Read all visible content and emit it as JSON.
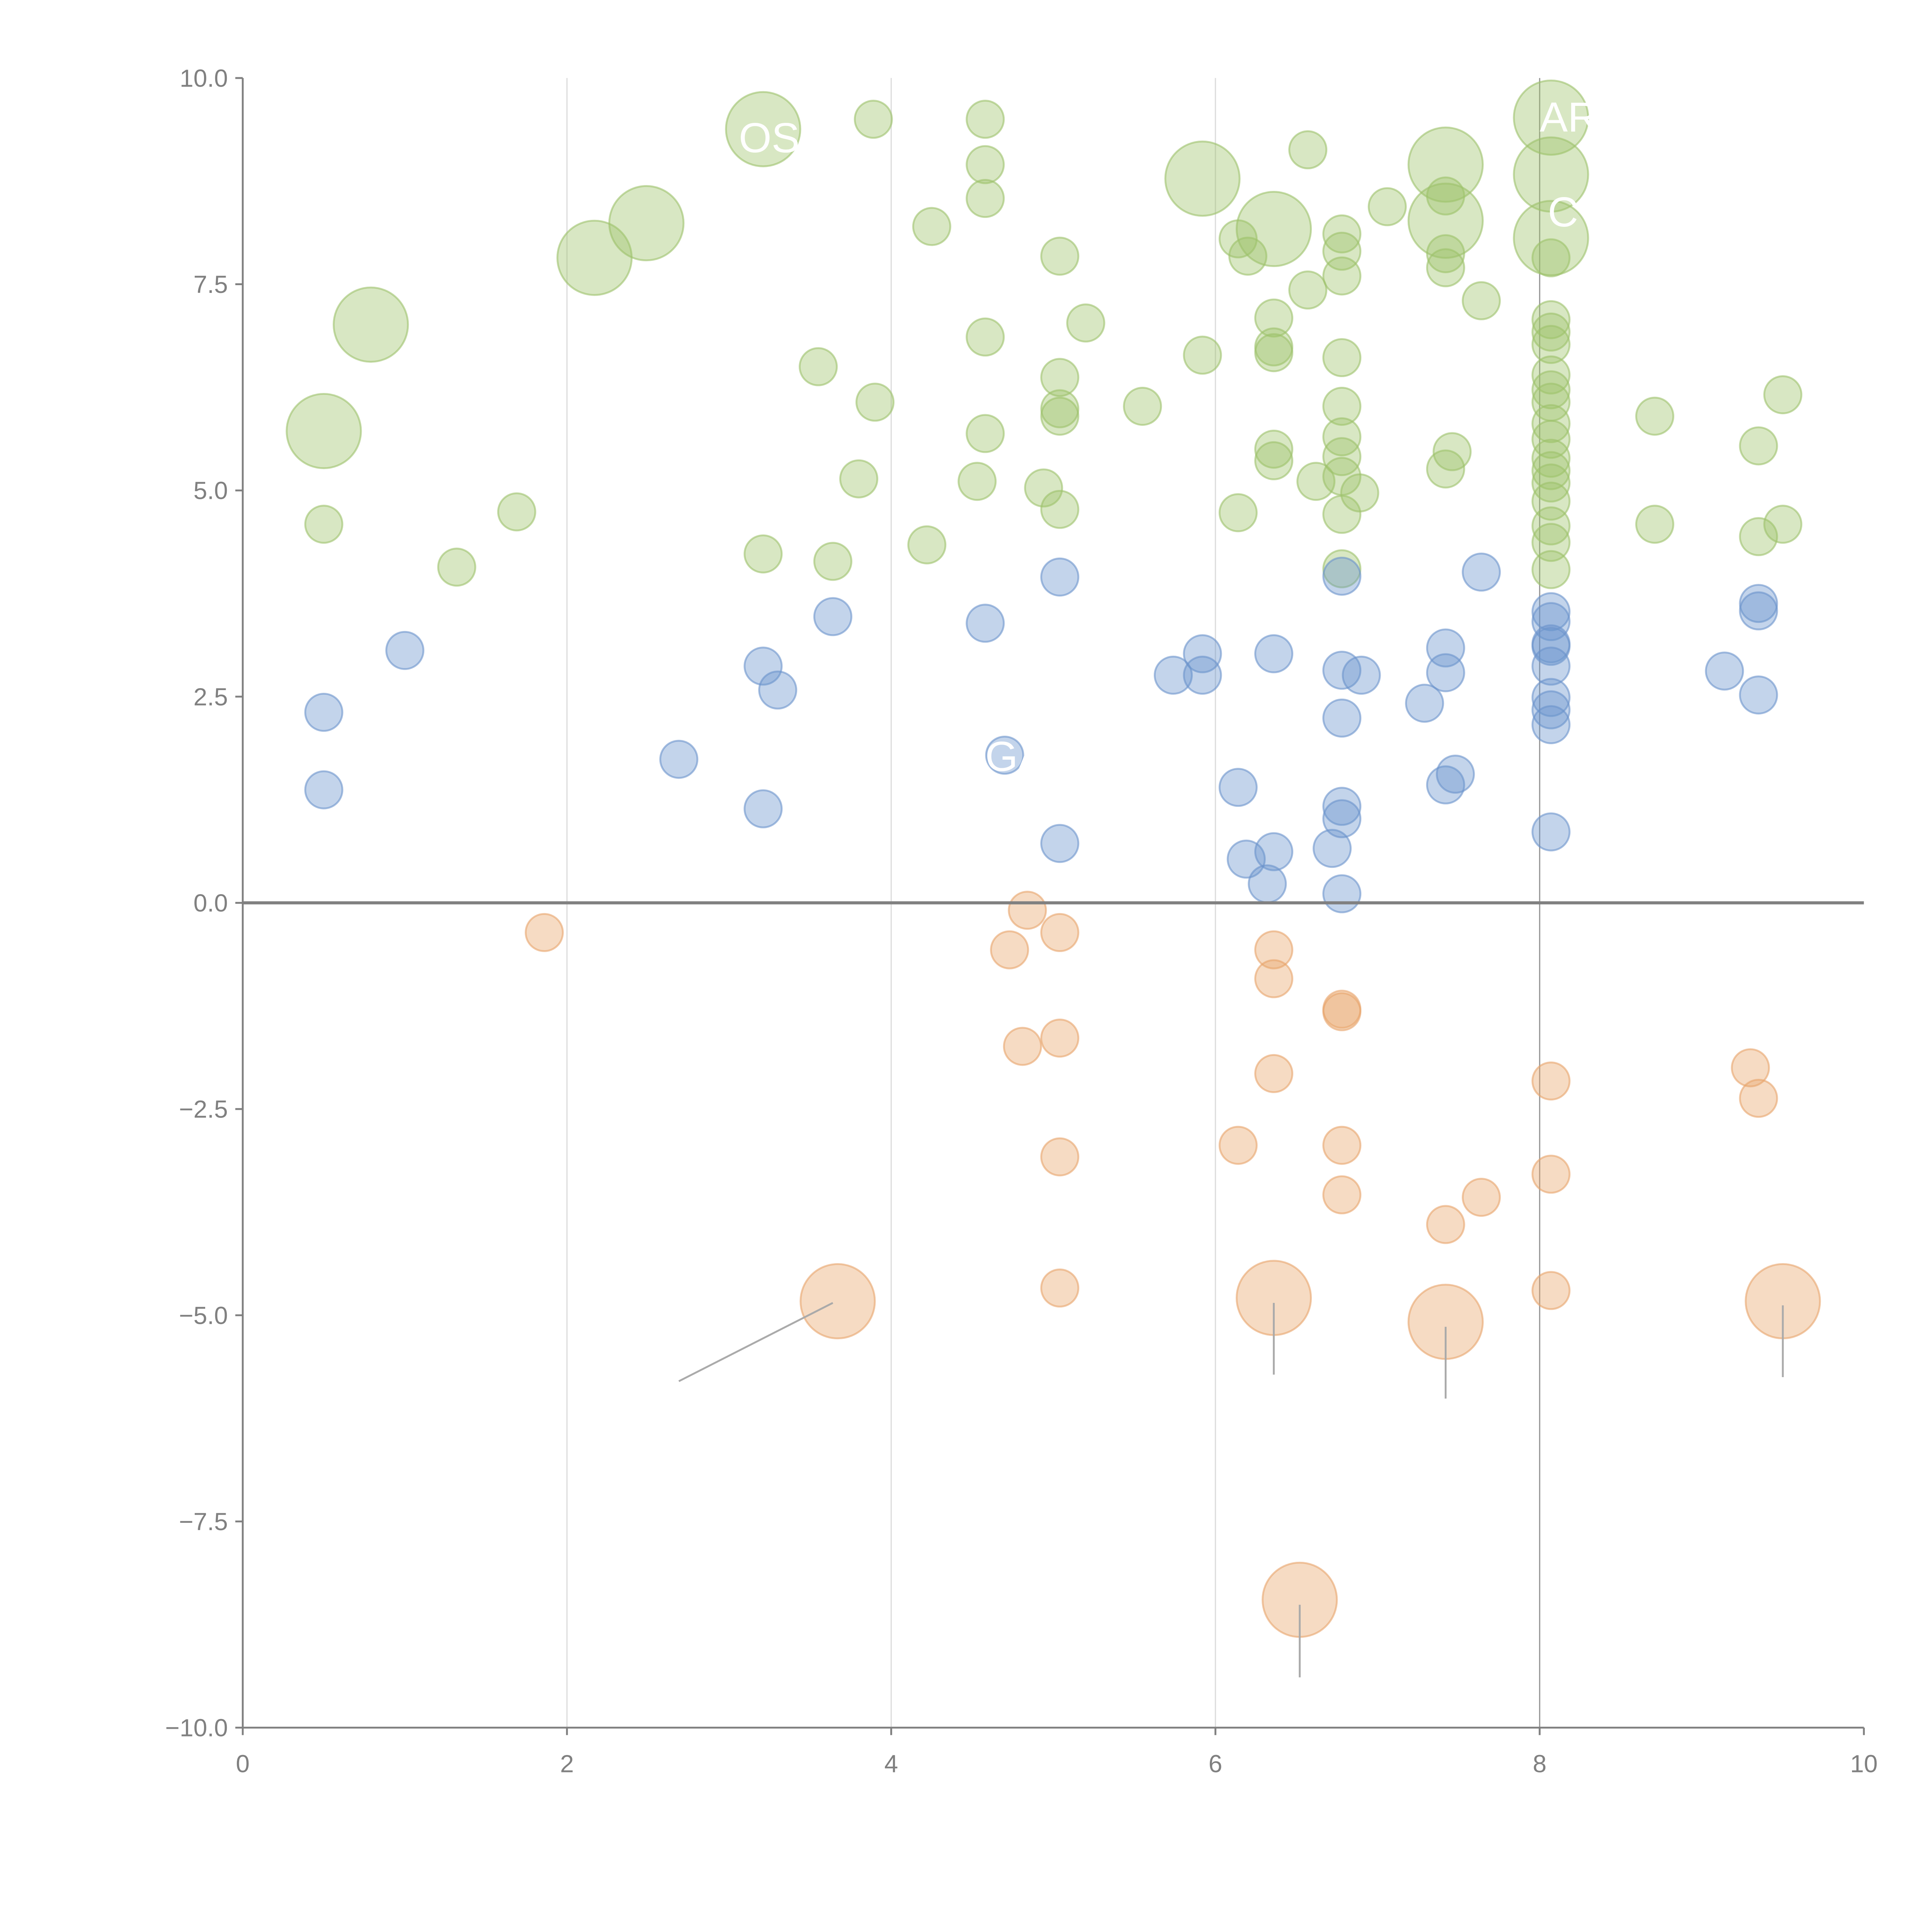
{
  "chart_data": {
    "type": "scatter",
    "title": "",
    "xlabel": "",
    "ylabel": "",
    "xlim": [
      0,
      10
    ],
    "ylim": [
      -10,
      10
    ],
    "xticks": [
      "0",
      "2",
      "4",
      "6",
      "8",
      "10"
    ],
    "yticks": [
      "10.0",
      "7.5",
      "5.0",
      "2.5",
      "0.0",
      "−2.5",
      "−5.0",
      "−7.5",
      "−10.0"
    ],
    "grid": "vertical lines at x = 2, 4, 6, 8",
    "legend": "none",
    "colors": {
      "green": "#9dc26a",
      "blue": "#6a93cc",
      "orange": "#e8a46a",
      "axis": "#808080"
    },
    "series": [
      {
        "name": "green",
        "color": "#9dc26a",
        "size": "small",
        "points": [
          [
            0.5,
            4.59
          ],
          [
            1.32,
            4.07
          ],
          [
            1.69,
            4.74
          ],
          [
            3.21,
            4.23
          ],
          [
            3.64,
            4.14
          ],
          [
            3.8,
            5.14
          ],
          [
            3.55,
            6.5
          ],
          [
            3.9,
            6.07
          ],
          [
            3.89,
            9.5
          ],
          [
            4.22,
            4.34
          ],
          [
            4.25,
            8.2
          ],
          [
            4.58,
            9.5
          ],
          [
            4.58,
            8.95
          ],
          [
            4.58,
            8.54
          ],
          [
            4.58,
            6.86
          ],
          [
            4.58,
            5.69
          ],
          [
            4.53,
            5.11
          ],
          [
            4.94,
            5.03
          ],
          [
            5.04,
            4.77
          ],
          [
            5.04,
            5.9
          ],
          [
            5.04,
            5.99
          ],
          [
            5.04,
            6.37
          ],
          [
            5.04,
            7.84
          ],
          [
            5.2,
            7.03
          ],
          [
            5.55,
            6.02
          ],
          [
            5.92,
            6.64
          ],
          [
            6.14,
            4.73
          ],
          [
            6.2,
            7.84
          ],
          [
            6.14,
            8.05
          ],
          [
            6.36,
            7.09
          ],
          [
            6.36,
            6.74
          ],
          [
            6.36,
            6.67
          ],
          [
            6.36,
            5.5
          ],
          [
            6.36,
            5.36
          ],
          [
            6.57,
            9.13
          ],
          [
            6.57,
            7.43
          ],
          [
            6.62,
            5.11
          ],
          [
            6.78,
            8.11
          ],
          [
            6.78,
            7.9
          ],
          [
            6.78,
            7.6
          ],
          [
            6.78,
            6.61
          ],
          [
            6.78,
            6.02
          ],
          [
            6.78,
            5.65
          ],
          [
            6.78,
            5.41
          ],
          [
            6.78,
            5.17
          ],
          [
            6.78,
            4.71
          ],
          [
            6.78,
            4.05
          ],
          [
            6.89,
            4.97
          ],
          [
            7.06,
            8.44
          ],
          [
            7.42,
            8.57
          ],
          [
            7.42,
            7.87
          ],
          [
            7.42,
            7.7
          ],
          [
            7.42,
            5.26
          ],
          [
            7.46,
            5.47
          ],
          [
            7.64,
            7.3
          ],
          [
            8.07,
            7.82
          ],
          [
            8.07,
            7.07
          ],
          [
            8.07,
            6.92
          ],
          [
            8.07,
            6.77
          ],
          [
            8.07,
            6.4
          ],
          [
            8.07,
            6.22
          ],
          [
            8.07,
            6.07
          ],
          [
            8.07,
            5.81
          ],
          [
            8.07,
            5.62
          ],
          [
            8.07,
            5.39
          ],
          [
            8.07,
            5.24
          ],
          [
            8.07,
            5.09
          ],
          [
            8.07,
            4.87
          ],
          [
            8.07,
            4.57
          ],
          [
            8.07,
            4.37
          ],
          [
            8.07,
            4.04
          ],
          [
            8.71,
            5.9
          ],
          [
            8.71,
            4.59
          ],
          [
            9.35,
            5.54
          ],
          [
            9.35,
            4.44
          ],
          [
            9.5,
            6.16
          ],
          [
            9.5,
            4.59
          ]
        ]
      },
      {
        "name": "green",
        "color": "#9dc26a",
        "size": "large",
        "points": [
          [
            0.5,
            5.72
          ],
          [
            0.79,
            7.01
          ],
          [
            2.17,
            7.82
          ],
          [
            2.49,
            8.24
          ],
          [
            3.21,
            9.38
          ],
          [
            5.92,
            8.78
          ],
          [
            6.36,
            8.17
          ],
          [
            7.42,
            8.95
          ],
          [
            7.42,
            8.27
          ],
          [
            8.07,
            9.52
          ],
          [
            8.07,
            8.83
          ],
          [
            8.07,
            8.06
          ]
        ]
      },
      {
        "name": "blue",
        "color": "#6a93cc",
        "size": "small",
        "points": [
          [
            0.5,
            2.31
          ],
          [
            0.5,
            1.37
          ],
          [
            1.0,
            3.06
          ],
          [
            2.69,
            1.74
          ],
          [
            3.21,
            2.87
          ],
          [
            3.3,
            2.58
          ],
          [
            3.21,
            1.14
          ],
          [
            3.64,
            3.47
          ],
          [
            4.58,
            3.39
          ],
          [
            4.7,
            1.79
          ],
          [
            5.04,
            3.95
          ],
          [
            5.04,
            0.72
          ],
          [
            5.74,
            2.76
          ],
          [
            5.92,
            3.02
          ],
          [
            5.92,
            2.76
          ],
          [
            6.14,
            1.4
          ],
          [
            6.19,
            0.53
          ],
          [
            6.36,
            3.02
          ],
          [
            6.36,
            0.62
          ],
          [
            6.32,
            0.23
          ],
          [
            6.72,
            0.66
          ],
          [
            6.78,
            3.96
          ],
          [
            6.78,
            2.82
          ],
          [
            6.78,
            2.24
          ],
          [
            6.78,
            1.17
          ],
          [
            6.78,
            1.02
          ],
          [
            6.78,
            0.11
          ],
          [
            6.9,
            2.76
          ],
          [
            7.29,
            2.42
          ],
          [
            7.42,
            3.09
          ],
          [
            7.42,
            2.79
          ],
          [
            7.42,
            1.43
          ],
          [
            7.48,
            1.56
          ],
          [
            7.64,
            4.01
          ],
          [
            8.07,
            3.53
          ],
          [
            8.07,
            3.41
          ],
          [
            8.07,
            3.14
          ],
          [
            8.07,
            3.11
          ],
          [
            8.07,
            2.87
          ],
          [
            8.07,
            2.49
          ],
          [
            8.07,
            2.34
          ],
          [
            8.07,
            2.16
          ],
          [
            8.07,
            0.86
          ],
          [
            9.14,
            2.81
          ],
          [
            9.35,
            3.63
          ],
          [
            9.35,
            3.54
          ],
          [
            9.35,
            2.52
          ]
        ]
      },
      {
        "name": "orange",
        "color": "#e8a46a",
        "size": "small",
        "points": [
          [
            1.86,
            -0.36
          ],
          [
            4.73,
            -0.57
          ],
          [
            4.84,
            -0.09
          ],
          [
            5.04,
            -0.36
          ],
          [
            4.81,
            -1.74
          ],
          [
            5.04,
            -1.64
          ],
          [
            5.04,
            -3.08
          ],
          [
            5.04,
            -4.67
          ],
          [
            6.14,
            -2.94
          ],
          [
            6.36,
            -0.57
          ],
          [
            6.36,
            -0.92
          ],
          [
            6.36,
            -2.07
          ],
          [
            6.78,
            -1.29
          ],
          [
            6.78,
            -1.32
          ],
          [
            6.78,
            -2.94
          ],
          [
            6.78,
            -3.54
          ],
          [
            7.42,
            -3.9
          ],
          [
            7.64,
            -3.57
          ],
          [
            8.07,
            -2.16
          ],
          [
            8.07,
            -3.29
          ],
          [
            8.07,
            -4.7
          ],
          [
            9.3,
            -2.0
          ],
          [
            9.35,
            -2.37
          ]
        ]
      },
      {
        "name": "orange",
        "color": "#e8a46a",
        "size": "large",
        "points": [
          [
            3.67,
            -4.83
          ],
          [
            6.36,
            -4.79
          ],
          [
            7.42,
            -5.08
          ],
          [
            9.5,
            -4.83
          ],
          [
            6.52,
            -8.45
          ]
        ]
      }
    ],
    "leader_lines": [
      {
        "from": [
          3.64,
          -4.85
        ],
        "to": [
          2.69,
          -5.8
        ]
      },
      {
        "from": [
          6.36,
          -4.85
        ],
        "to": [
          6.36,
          -5.72
        ]
      },
      {
        "from": [
          7.42,
          -5.14
        ],
        "to": [
          7.42,
          -6.01
        ]
      },
      {
        "from": [
          9.5,
          -4.88
        ],
        "to": [
          9.5,
          -5.75
        ]
      },
      {
        "from": [
          6.52,
          -8.51
        ],
        "to": [
          6.52,
          -9.39
        ]
      }
    ],
    "annotations": [
      {
        "text": "OS",
        "x": 3.06,
        "y": 9.1
      },
      {
        "text": "AR",
        "x": 8.0,
        "y": 9.35
      },
      {
        "text": "C",
        "x": 8.05,
        "y": 8.2
      },
      {
        "text": "GA",
        "x": 4.58,
        "y": 1.6
      }
    ]
  }
}
